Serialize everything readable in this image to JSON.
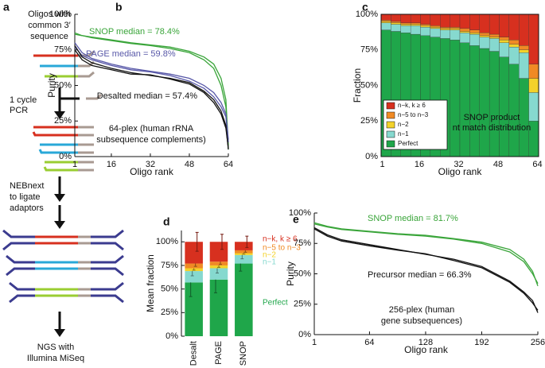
{
  "diagram": {
    "label": "a",
    "steps": [
      [
        "Oligos with",
        "common 3′",
        "sequence"
      ],
      [
        "1 cycle",
        "PCR"
      ],
      [
        "NEBnext",
        "to ligate",
        "adaptors"
      ],
      [
        "NGS with",
        "Illumina MiSeq"
      ]
    ]
  },
  "chart_data": [
    {
      "type": "line",
      "label": "b",
      "x_label": "Oligo rank",
      "y_label": "Purity",
      "x": [
        1,
        4,
        8,
        16,
        24,
        32,
        40,
        48,
        54,
        58,
        61,
        63,
        64
      ],
      "xlim": [
        1,
        64
      ],
      "xticks": [
        1,
        16,
        32,
        48,
        64
      ],
      "ylim": [
        0,
        100
      ],
      "yticks": [
        {
          "value": 0,
          "label": "0%"
        },
        {
          "value": 25,
          "label": "25%"
        },
        {
          "value": 50,
          "label": "50%"
        },
        {
          "value": 75,
          "label": "75%"
        },
        {
          "value": 100,
          "label": "100%"
        }
      ],
      "series": [
        {
          "color": "#3aa53a",
          "values": [
            87,
            85,
            84,
            82,
            80,
            78.5,
            77,
            74,
            70,
            65,
            55,
            40,
            8
          ]
        },
        {
          "color": "#3aa53a",
          "values": [
            86,
            85,
            83.5,
            81.5,
            79.5,
            78,
            76,
            73,
            68,
            62,
            50,
            35,
            5
          ]
        },
        {
          "color": "#5858a8",
          "values": [
            77,
            71,
            68,
            64,
            61,
            59.5,
            57,
            53,
            48,
            42,
            35,
            28,
            10
          ]
        },
        {
          "color": "#5858a8",
          "values": [
            80,
            73,
            69,
            65,
            62,
            60,
            58,
            55,
            50,
            45,
            38,
            30,
            12
          ]
        },
        {
          "color": "#111111",
          "values": [
            78,
            70,
            66,
            62,
            59,
            57,
            55,
            52,
            46,
            40,
            32,
            22,
            5
          ]
        },
        {
          "color": "#111111",
          "values": [
            75,
            68,
            64,
            61,
            58,
            57.5,
            54.5,
            51,
            45,
            38,
            30,
            20,
            6
          ]
        }
      ],
      "annotations": [
        "SNOP median = 78.4%",
        "PAGE median = 59.8%",
        "Desalted median = 57.4%",
        "64-plex (human rRNA",
        "subsequence complements)"
      ]
    },
    {
      "type": "stacked-histogram",
      "label": "c",
      "x_label": "Oligo rank",
      "y_label": "Fraction",
      "bins": [
        0.5,
        4.5,
        8.5,
        12.5,
        16.5,
        20.5,
        24.5,
        28.5,
        32.5,
        36.5,
        40.5,
        44.5,
        48.5,
        52.5,
        56.5,
        60.5,
        64.5
      ],
      "xlim": [
        0.5,
        64.5
      ],
      "xticks": [
        1,
        16,
        32,
        48,
        64
      ],
      "ylim": [
        0,
        100
      ],
      "yticks": [
        {
          "value": 0,
          "label": "0%"
        },
        {
          "value": 25,
          "label": "25%"
        },
        {
          "value": 50,
          "label": "50%"
        },
        {
          "value": 75,
          "label": "75%"
        },
        {
          "value": 100,
          "label": "100%"
        }
      ],
      "series": [
        {
          "name": "Perfect",
          "color": "#1fa64a",
          "values": [
            89,
            88,
            87,
            86,
            85,
            84,
            83,
            82,
            80,
            78,
            76,
            74,
            70,
            65,
            55,
            25
          ]
        },
        {
          "name": "n−1",
          "color": "#86d9cf",
          "values": [
            5,
            5,
            5,
            6,
            6,
            6,
            6,
            7,
            7,
            8,
            8,
            9,
            10,
            12,
            18,
            20
          ]
        },
        {
          "name": "n−2",
          "color": "#f3d22a",
          "values": [
            1,
            1,
            1,
            1,
            1,
            1,
            1,
            1,
            1,
            1,
            1,
            1,
            2,
            2,
            2,
            10
          ]
        },
        {
          "name": "n−5 to n−3",
          "color": "#f08a24",
          "values": [
            1,
            1,
            1,
            1,
            1,
            1,
            1,
            1,
            2,
            2,
            2,
            2,
            2,
            3,
            3,
            10
          ]
        },
        {
          "name": "n−k, k ≥ 6",
          "color": "#d7301f",
          "values": [
            4,
            5,
            6,
            6,
            7,
            8,
            9,
            9,
            10,
            11,
            13,
            14,
            16,
            18,
            22,
            35
          ]
        }
      ],
      "annotations": [
        "SNOP product",
        "nt match distribution"
      ]
    },
    {
      "type": "stacked-bar",
      "label": "d",
      "y_label": "Mean fraction",
      "categories": [
        "Desalt",
        "PAGE",
        "SNOP"
      ],
      "ylim": [
        0,
        112
      ],
      "yticks": [
        {
          "value": 0,
          "label": "0%"
        },
        {
          "value": 25,
          "label": "25%"
        },
        {
          "value": 50,
          "label": "50%"
        },
        {
          "value": 75,
          "label": "75%"
        },
        {
          "value": 100,
          "label": "100%"
        }
      ],
      "series": [
        {
          "name": "Perfect",
          "color": "#1fa64a",
          "values": [
            57,
            60,
            77
          ],
          "errors": [
            15,
            14,
            8
          ]
        },
        {
          "name": "n−1",
          "color": "#86d9cf",
          "values": [
            12,
            12,
            9
          ],
          "errors": [
            5,
            5,
            4
          ]
        },
        {
          "name": "n−2",
          "color": "#f3d22a",
          "values": [
            3,
            3,
            2
          ],
          "errors": [
            2,
            2,
            1
          ]
        },
        {
          "name": "n−5 to n−3",
          "color": "#f08a24",
          "values": [
            5,
            4,
            3
          ],
          "errors": [
            3,
            3,
            2
          ]
        },
        {
          "name": "n−k, k ≥ 6",
          "color": "#d7301f",
          "values": [
            23,
            21,
            9
          ],
          "errors": [
            10,
            8,
            6
          ]
        }
      ]
    },
    {
      "type": "line",
      "label": "e",
      "x_label": "Oligo rank",
      "y_label": "Purity",
      "x": [
        1,
        16,
        32,
        64,
        96,
        128,
        160,
        192,
        224,
        240,
        250,
        256
      ],
      "xlim": [
        1,
        256
      ],
      "xticks": [
        1,
        64,
        128,
        192,
        256
      ],
      "ylim": [
        0,
        100
      ],
      "yticks": [
        {
          "value": 0,
          "label": "0%"
        },
        {
          "value": 25,
          "label": "25%"
        },
        {
          "value": 50,
          "label": "50%"
        },
        {
          "value": 75,
          "label": "75%"
        },
        {
          "value": 100,
          "label": "100%"
        }
      ],
      "series": [
        {
          "color": "#3aa53a",
          "values": [
            92,
            89,
            87,
            85,
            83,
            81.7,
            79,
            76,
            70,
            62,
            52,
            40
          ]
        },
        {
          "color": "#3aa53a",
          "values": [
            91,
            88.5,
            86.5,
            84.5,
            82.5,
            81,
            78.5,
            75,
            68,
            60,
            50,
            42
          ]
        },
        {
          "color": "#111111",
          "values": [
            88,
            82,
            78,
            74,
            70,
            66,
            62,
            56,
            44,
            35,
            28,
            18
          ]
        },
        {
          "color": "#111111",
          "values": [
            87,
            81,
            77,
            73,
            69.5,
            66.5,
            61,
            55,
            43,
            34,
            26,
            20
          ]
        }
      ],
      "annotations": [
        "SNOP median = 81.7%",
        "Precursor median = 66.3%",
        "256-plex (human",
        "gene subsequences)"
      ]
    }
  ]
}
